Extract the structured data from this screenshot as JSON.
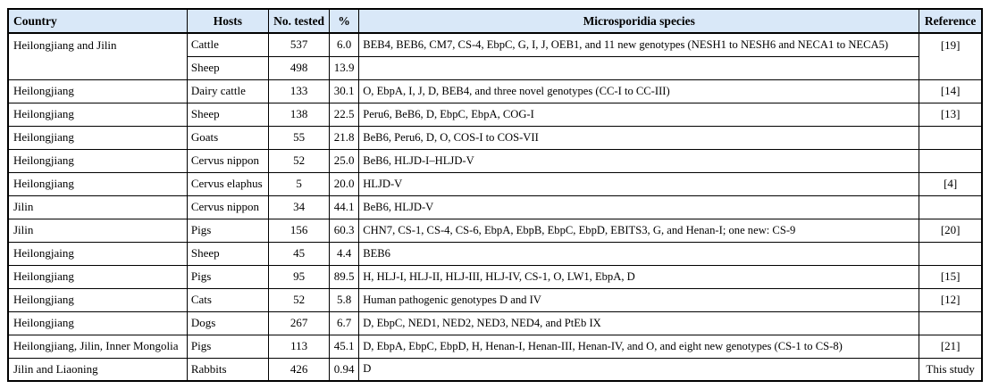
{
  "table": {
    "title": "Microsporidia detection table",
    "colors": {
      "header_bg": "#d9e8f8",
      "border": "#000000",
      "row_bg": "#ffffff"
    },
    "columns": [
      {
        "key": "country",
        "label": "Country"
      },
      {
        "key": "host",
        "label": "Hosts"
      },
      {
        "key": "tested",
        "label": "No. tested"
      },
      {
        "key": "pct",
        "label": "%"
      },
      {
        "key": "species",
        "label": "Microsporidia species"
      },
      {
        "key": "reference",
        "label": "Reference"
      }
    ],
    "rows": [
      {
        "cells": [
          {
            "col": "country",
            "value": "Heilongjiang and Jilin",
            "rowspan": 2
          },
          {
            "col": "host",
            "value": "Cattle"
          },
          {
            "col": "tested",
            "value": "537"
          },
          {
            "col": "pct",
            "value": "6.0"
          },
          {
            "col": "species",
            "value": "BEB4, BEB6, CM7, CS-4, EbpC, G, I, J, OEB1, and 11 new genotypes (NESH1 to NESH6 and NECA1 to NECA5)"
          },
          {
            "col": "reference",
            "value": "[19]",
            "rowspan": 2
          }
        ]
      },
      {
        "cells": [
          {
            "col": "host",
            "value": "Sheep"
          },
          {
            "col": "tested",
            "value": "498"
          },
          {
            "col": "pct",
            "value": "13.9"
          },
          {
            "col": "species",
            "value": ""
          }
        ]
      },
      {
        "cells": [
          {
            "col": "country",
            "value": "Heilongjiang"
          },
          {
            "col": "host",
            "value": "Dairy cattle"
          },
          {
            "col": "tested",
            "value": "133"
          },
          {
            "col": "pct",
            "value": "30.1"
          },
          {
            "col": "species",
            "value": "O, EbpA, I, J, D, BEB4, and three novel genotypes (CC-I to CC-III)"
          },
          {
            "col": "reference",
            "value": "[14]"
          }
        ]
      },
      {
        "cells": [
          {
            "col": "country",
            "value": "Heilongjiang"
          },
          {
            "col": "host",
            "value": "Sheep"
          },
          {
            "col": "tested",
            "value": "138"
          },
          {
            "col": "pct",
            "value": "22.5"
          },
          {
            "col": "species",
            "value": "Peru6, BeB6, D, EbpC, EbpA, COG-I"
          },
          {
            "col": "reference",
            "value": "[13]"
          }
        ]
      },
      {
        "cells": [
          {
            "col": "country",
            "value": "Heilongjiang"
          },
          {
            "col": "host",
            "value": "Goats"
          },
          {
            "col": "tested",
            "value": "55"
          },
          {
            "col": "pct",
            "value": "21.8"
          },
          {
            "col": "species",
            "value": "BeB6, Peru6, D, O, COS-I to COS-VII"
          },
          {
            "col": "reference",
            "value": ""
          }
        ]
      },
      {
        "cells": [
          {
            "col": "country",
            "value": "Heilongjiang"
          },
          {
            "col": "host",
            "value": "Cervus nippon"
          },
          {
            "col": "tested",
            "value": "52"
          },
          {
            "col": "pct",
            "value": "25.0"
          },
          {
            "col": "species",
            "value": "BeB6, HLJD-I–HLJD-V"
          },
          {
            "col": "reference",
            "value": ""
          }
        ]
      },
      {
        "cells": [
          {
            "col": "country",
            "value": "Heilongjiang"
          },
          {
            "col": "host",
            "value": "Cervus elaphus"
          },
          {
            "col": "tested",
            "value": "5"
          },
          {
            "col": "pct",
            "value": "20.0"
          },
          {
            "col": "species",
            "value": "HLJD-V"
          },
          {
            "col": "reference",
            "value": "[4]"
          }
        ]
      },
      {
        "cells": [
          {
            "col": "country",
            "value": "Jilin"
          },
          {
            "col": "host",
            "value": "Cervus nippon"
          },
          {
            "col": "tested",
            "value": "34"
          },
          {
            "col": "pct",
            "value": "44.1"
          },
          {
            "col": "species",
            "value": "BeB6, HLJD-V"
          },
          {
            "col": "reference",
            "value": ""
          }
        ]
      },
      {
        "cells": [
          {
            "col": "country",
            "value": "Jilin"
          },
          {
            "col": "host",
            "value": "Pigs"
          },
          {
            "col": "tested",
            "value": "156"
          },
          {
            "col": "pct",
            "value": "60.3"
          },
          {
            "col": "species",
            "value": "CHN7, CS-1, CS-4, CS-6, EbpA, EbpB, EbpC, EbpD, EBITS3, G, and Henan-I; one new: CS-9"
          },
          {
            "col": "reference",
            "value": "[20]"
          }
        ]
      },
      {
        "cells": [
          {
            "col": "country",
            "value": "Heilongjaing"
          },
          {
            "col": "host",
            "value": "Sheep"
          },
          {
            "col": "tested",
            "value": "45"
          },
          {
            "col": "pct",
            "value": "4.4"
          },
          {
            "col": "species",
            "value": "BEB6"
          },
          {
            "col": "reference",
            "value": ""
          }
        ]
      },
      {
        "cells": [
          {
            "col": "country",
            "value": "Heilongjiang"
          },
          {
            "col": "host",
            "value": "Pigs"
          },
          {
            "col": "tested",
            "value": "95"
          },
          {
            "col": "pct",
            "value": "89.5"
          },
          {
            "col": "species",
            "value": "H, HLJ-I, HLJ-II, HLJ-III, HLJ-IV, CS-1, O, LW1, EbpA, D"
          },
          {
            "col": "reference",
            "value": "[15]"
          }
        ]
      },
      {
        "cells": [
          {
            "col": "country",
            "value": "Heilongjiang"
          },
          {
            "col": "host",
            "value": "Cats"
          },
          {
            "col": "tested",
            "value": "52"
          },
          {
            "col": "pct",
            "value": "5.8"
          },
          {
            "col": "species",
            "value": "Human pathogenic genotypes D and IV"
          },
          {
            "col": "reference",
            "value": "[12]"
          }
        ]
      },
      {
        "cells": [
          {
            "col": "country",
            "value": "Heilongjiang"
          },
          {
            "col": "host",
            "value": "Dogs"
          },
          {
            "col": "tested",
            "value": "267"
          },
          {
            "col": "pct",
            "value": "6.7"
          },
          {
            "col": "species",
            "value": "D, EbpC, NED1, NED2, NED3, NED4, and PtEb IX"
          },
          {
            "col": "reference",
            "value": ""
          }
        ]
      },
      {
        "cells": [
          {
            "col": "country",
            "value": "Heilongjiang, Jilin, Inner Mongolia"
          },
          {
            "col": "host",
            "value": "Pigs"
          },
          {
            "col": "tested",
            "value": "113"
          },
          {
            "col": "pct",
            "value": "45.1"
          },
          {
            "col": "species",
            "value": "D, EbpA, EbpC, EbpD, H, Henan-I, Henan-III, Henan-IV, and O, and eight new genotypes (CS-1 to CS-8)"
          },
          {
            "col": "reference",
            "value": "[21]"
          }
        ]
      },
      {
        "cells": [
          {
            "col": "country",
            "value": "Jilin and Liaoning"
          },
          {
            "col": "host",
            "value": "Rabbits"
          },
          {
            "col": "tested",
            "value": "426"
          },
          {
            "col": "pct",
            "value": "0.94"
          },
          {
            "col": "species",
            "value": "D"
          },
          {
            "col": "reference",
            "value": "This study"
          }
        ]
      }
    ]
  }
}
